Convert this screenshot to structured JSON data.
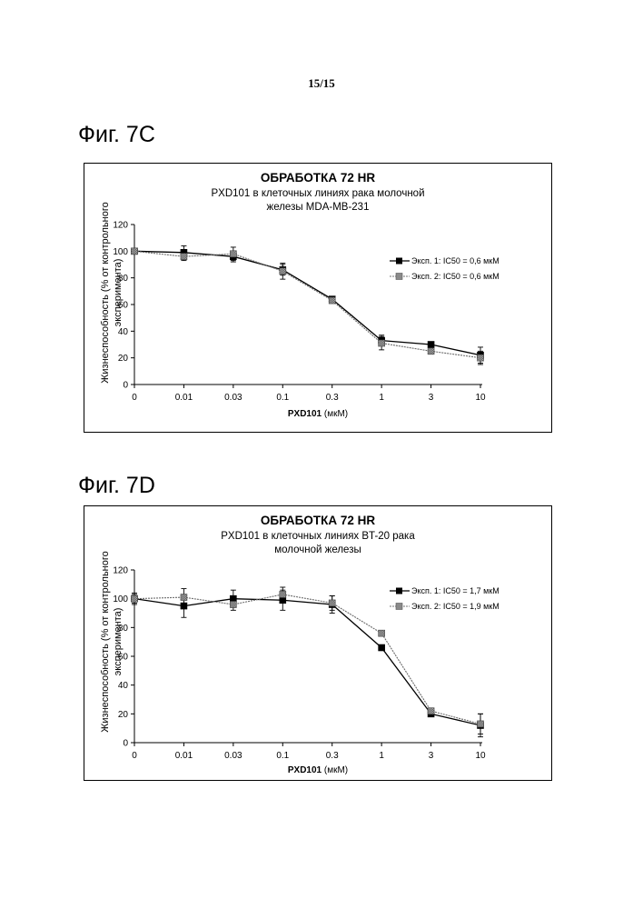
{
  "page_number": "15/15",
  "chart_data": [
    {
      "figure_label": "Фиг. 7C",
      "type": "line",
      "title": "ОБРАБОТКА 72 HR",
      "subtitle_lines": [
        "PXD101 в клеточных линиях рака молочной",
        "железы MDA-MB-231"
      ],
      "ylabel_lines": [
        "Жизнеспособность (% от контрольного",
        "эксперимента)"
      ],
      "xlabel_bold": "PXD101",
      "xlabel_unit": "(мкМ)",
      "categories": [
        "0",
        "0.01",
        "0.03",
        "0.1",
        "0.3",
        "1",
        "3",
        "10"
      ],
      "yticks": [
        "0",
        "20",
        "40",
        "60",
        "80",
        "100",
        "120"
      ],
      "ylim": [
        0,
        120
      ],
      "series": [
        {
          "name": "Эксп. 1: IC50 = 0,6 мкМ",
          "marker": "square-solid",
          "values": [
            100,
            99,
            96,
            86,
            64,
            33,
            30,
            22
          ],
          "errors": [
            1.5,
            5,
            4,
            4,
            1.5,
            4,
            2,
            6
          ]
        },
        {
          "name": "Эксп. 2: IC50 = 0,6 мкМ",
          "marker": "square-hatched",
          "values": [
            100,
            96,
            98,
            85,
            63,
            31,
            25,
            20
          ],
          "errors": [
            1.5,
            3,
            5,
            6,
            1.5,
            5,
            2,
            5
          ]
        }
      ],
      "legend_position": "right"
    },
    {
      "figure_label": "Фиг. 7D",
      "type": "line",
      "title": "ОБРАБОТКА 72 HR",
      "subtitle_lines": [
        "PXD101 в клеточных линиях BT-20 рака",
        "молочной железы"
      ],
      "ylabel_lines": [
        "Жизнеспособность (% от контрольного",
        "эксперимента)"
      ],
      "xlabel_bold": "PXD101",
      "xlabel_unit": "(мкМ)",
      "categories": [
        "0",
        "0.01",
        "0.03",
        "0.1",
        "0.3",
        "1",
        "3",
        "10"
      ],
      "yticks": [
        "0",
        "20",
        "40",
        "60",
        "80",
        "100",
        "120"
      ],
      "ylim": [
        0,
        120
      ],
      "series": [
        {
          "name": "Эксп. 1: IC50 = 1,7 мкМ",
          "marker": "square-solid",
          "values": [
            100,
            95,
            100,
            99,
            96,
            66,
            20,
            12
          ],
          "errors": [
            4,
            8,
            6,
            7,
            6,
            1.5,
            2,
            8
          ]
        },
        {
          "name": "Эксп. 2: IC50 = 1,9 мкМ",
          "marker": "square-hatched",
          "values": [
            100,
            101,
            96,
            103,
            97,
            76,
            22,
            13
          ],
          "errors": [
            3,
            6,
            4,
            5,
            5,
            1.5,
            2,
            7
          ]
        }
      ],
      "legend_position": "right"
    }
  ]
}
